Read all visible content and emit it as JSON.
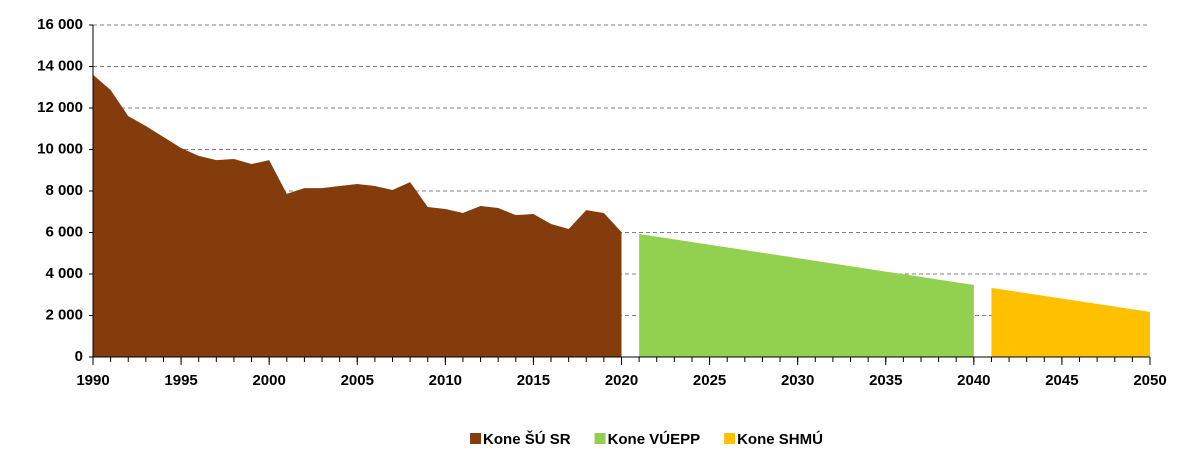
{
  "chart_data": {
    "type": "area",
    "xlim": [
      1990,
      2050
    ],
    "xticks": [
      1990,
      1995,
      2000,
      2005,
      2010,
      2015,
      2020,
      2025,
      2030,
      2035,
      2040,
      2045,
      2050
    ],
    "ylim": [
      0,
      16000
    ],
    "yticks": [
      0,
      {
        "value": 2000,
        "label": "2 000"
      },
      {
        "value": 4000,
        "label": "4 000"
      },
      {
        "value": 6000,
        "label": "6 000"
      },
      {
        "value": 8000,
        "label": "8 000"
      },
      {
        "value": 10000,
        "label": "10 000"
      },
      {
        "value": 12000,
        "label": "12 000"
      },
      {
        "value": 14000,
        "label": "14 000"
      },
      {
        "value": 16000,
        "label": "16 000"
      }
    ],
    "grid": true,
    "legend": "bottom",
    "series": [
      {
        "name": "Kone ŠÚ SR",
        "color": "#843c0c",
        "x": [
          1990,
          1991,
          1992,
          1993,
          1994,
          1995,
          1996,
          1997,
          1998,
          1999,
          2000,
          2001,
          2002,
          2003,
          2004,
          2005,
          2006,
          2007,
          2008,
          2009,
          2010,
          2011,
          2012,
          2013,
          2014,
          2015,
          2016,
          2017,
          2018,
          2019,
          2020
        ],
        "values": [
          13600,
          12870,
          11610,
          11130,
          10600,
          10070,
          9690,
          9490,
          9540,
          9300,
          9490,
          7860,
          8140,
          8140,
          8240,
          8340,
          8240,
          8050,
          8430,
          7230,
          7130,
          6940,
          7280,
          7180,
          6840,
          6890,
          6410,
          6170,
          7080,
          6940,
          6020
        ]
      },
      {
        "name": "Kone VÚEPP",
        "color": "#92d050",
        "x": [
          2021,
          2040
        ],
        "values": [
          5930,
          3470
        ]
      },
      {
        "name": "Kone SHMÚ",
        "color": "#ffc000",
        "x": [
          2041,
          2050
        ],
        "values": [
          3330,
          2170
        ]
      }
    ]
  }
}
